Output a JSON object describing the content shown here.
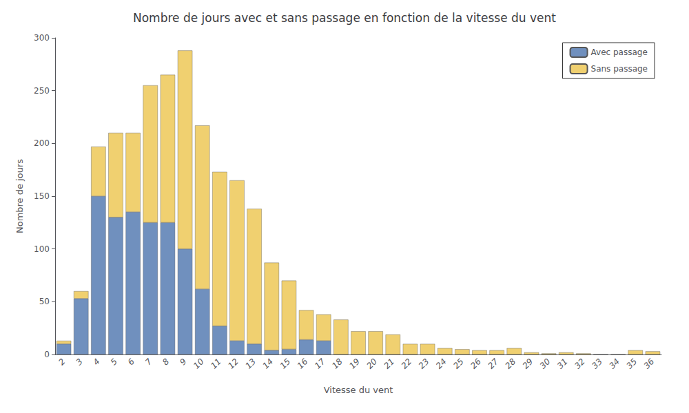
{
  "chart_data": {
    "type": "bar",
    "title": "Nombre de jours avec et sans passage en fonction de la vitesse du vent",
    "xlabel": "Vitesse du vent",
    "ylabel": "Nombre de jours",
    "categories": [
      2,
      3,
      4,
      5,
      6,
      7,
      8,
      9,
      10,
      11,
      12,
      13,
      14,
      15,
      16,
      17,
      18,
      19,
      20,
      21,
      22,
      23,
      24,
      25,
      26,
      27,
      28,
      29,
      30,
      31,
      32,
      33,
      34,
      35,
      36
    ],
    "series": [
      {
        "name": "Avec passage",
        "color": "#7090be",
        "values": [
          10,
          53,
          150,
          130,
          135,
          125,
          125,
          100,
          62,
          27,
          13,
          10,
          4,
          5,
          14,
          13,
          0,
          0,
          0,
          0,
          0,
          0,
          0,
          0,
          0,
          0,
          0,
          0,
          0,
          0,
          0,
          0,
          0,
          0,
          0
        ]
      },
      {
        "name": "Sans passage",
        "color": "#f0d070",
        "values": [
          3,
          7,
          47,
          80,
          75,
          130,
          140,
          188,
          155,
          146,
          152,
          128,
          83,
          65,
          28,
          25,
          33,
          22,
          22,
          19,
          10,
          10,
          6,
          5,
          4,
          4,
          6,
          2,
          1,
          2,
          1,
          0,
          0,
          4,
          3
        ]
      }
    ],
    "stacked": true,
    "ylim": [
      0,
      300
    ],
    "yticks": [
      0,
      50,
      100,
      150,
      200,
      250,
      300
    ],
    "grid": false,
    "legend": "upper right"
  }
}
